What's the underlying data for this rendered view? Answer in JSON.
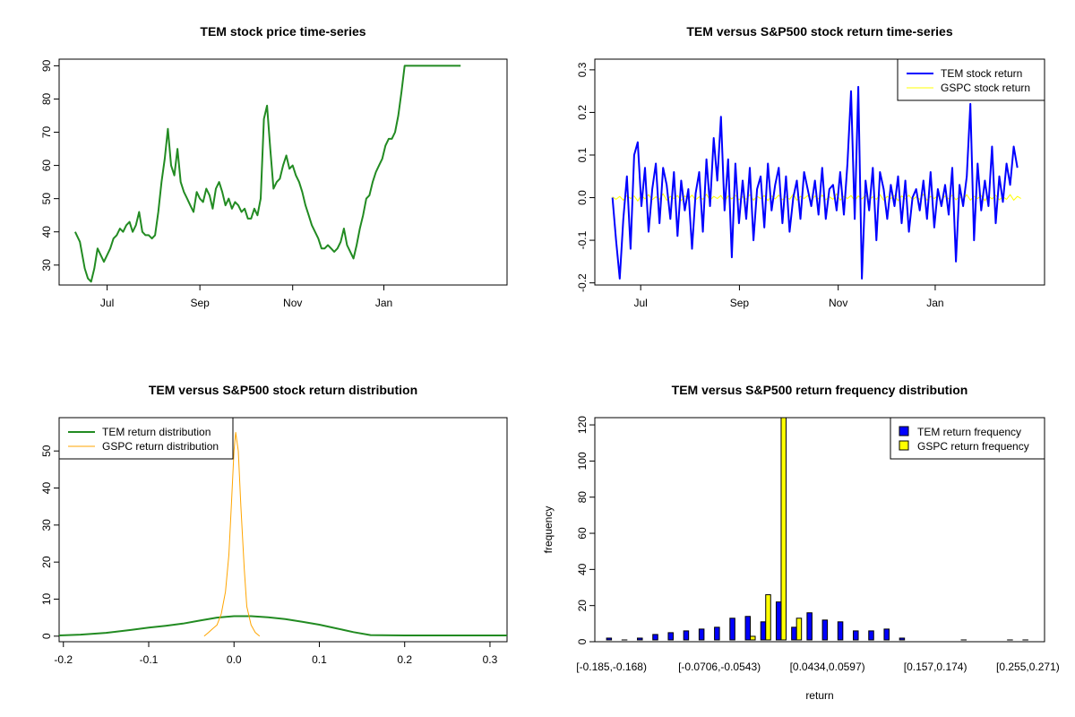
{
  "colors": {
    "price": "#228B22",
    "tem": "#0000FF",
    "gspc_line": "#FFFF00",
    "tem_density": "#228B22",
    "gspc_density": "#FFA500",
    "tem_hist": "#0000FF",
    "gspc_hist": "#FFFF00"
  },
  "chart_data": [
    {
      "id": "price",
      "type": "line",
      "title": "TEM stock price time-series",
      "xlabel": "",
      "ylabel": "",
      "xlim": [
        -10,
        270
      ],
      "ylim": [
        24,
        92
      ],
      "x_ticks": [
        {
          "label": "Jul",
          "x": 20
        },
        {
          "label": "Sep",
          "x": 78
        },
        {
          "label": "Nov",
          "x": 136
        },
        {
          "label": "Jan",
          "x": 193
        }
      ],
      "y_ticks": [
        30,
        40,
        50,
        60,
        70,
        80,
        90
      ],
      "series": [
        {
          "color_key": "price",
          "x": [
            0,
            3,
            6,
            8,
            10,
            12,
            14,
            16,
            18,
            20,
            22,
            24,
            26,
            28,
            30,
            32,
            34,
            36,
            38,
            40,
            42,
            44,
            46,
            48,
            50,
            52,
            54,
            56,
            58,
            60,
            62,
            64,
            66,
            68,
            70,
            72,
            74,
            76,
            78,
            80,
            82,
            84,
            86,
            88,
            90,
            92,
            94,
            96,
            98,
            100,
            102,
            104,
            106,
            108,
            110,
            112,
            114,
            116,
            118,
            120,
            122,
            124,
            126,
            128,
            130,
            132,
            134,
            136,
            138,
            140,
            142,
            144,
            146,
            148,
            150,
            152,
            154,
            156,
            158,
            160,
            162,
            164,
            166,
            168,
            170,
            172,
            174,
            176,
            178,
            180,
            182,
            184,
            186,
            188,
            190,
            192,
            194,
            196,
            198,
            200,
            202,
            204,
            206,
            208,
            210,
            212,
            214,
            216,
            218,
            220,
            222,
            224,
            226,
            228,
            230,
            232,
            234,
            236,
            238,
            240,
            241
          ],
          "y": [
            40,
            37,
            29,
            26,
            25,
            29,
            35,
            33,
            31,
            33,
            35,
            38,
            39,
            41,
            40,
            42,
            43,
            40,
            42,
            46,
            40,
            39,
            39,
            38,
            39,
            46,
            55,
            62,
            71,
            60,
            57,
            65,
            55,
            52,
            50,
            48,
            46,
            52,
            50,
            49,
            53,
            51,
            47,
            53,
            55,
            52,
            48,
            50,
            47,
            49,
            48,
            46,
            47,
            44,
            44,
            47,
            45,
            50,
            74,
            78,
            65,
            53,
            55,
            56,
            60,
            63,
            59,
            60,
            57,
            55,
            52,
            48,
            45,
            42,
            40,
            38,
            35,
            35,
            36,
            35,
            34,
            35,
            37,
            41,
            36,
            34,
            32,
            36,
            41,
            45,
            50,
            51,
            55,
            58,
            60,
            62,
            66,
            68,
            68,
            70,
            75,
            82,
            90,
            90,
            90,
            90,
            90,
            90,
            90,
            90,
            90,
            90,
            90,
            90,
            90,
            90,
            90,
            90,
            90,
            90,
            90
          ]
        }
      ]
    },
    {
      "id": "returns",
      "type": "line",
      "title": "TEM versus S&P500 stock return time-series",
      "xlabel": "",
      "ylabel": "",
      "xlim": [
        -10,
        245
      ],
      "ylim": [
        -0.205,
        0.325
      ],
      "x_ticks": [
        {
          "label": "Jul",
          "x": 16
        },
        {
          "label": "Sep",
          "x": 72
        },
        {
          "label": "Nov",
          "x": 128
        },
        {
          "label": "Jan",
          "x": 183
        }
      ],
      "y_ticks": [
        -0.2,
        -0.1,
        0.0,
        0.1,
        0.2,
        0.3
      ],
      "y_tick_labels": [
        "-0.2",
        "-0.1",
        "0.0",
        "0.1",
        "0.2",
        "0.3"
      ],
      "legend": {
        "position": "top-right",
        "entries": [
          {
            "label": "TEM stock return",
            "color_key": "tem"
          },
          {
            "label": "GSPC stock return",
            "color_key": "gspc_line"
          }
        ]
      },
      "series": [
        {
          "name": "TEM stock return",
          "color_key": "tem",
          "values": [
            0.0,
            -0.1,
            -0.19,
            -0.05,
            0.05,
            -0.12,
            0.1,
            0.13,
            -0.02,
            0.07,
            -0.08,
            0.02,
            0.08,
            -0.06,
            0.07,
            0.03,
            -0.05,
            0.06,
            -0.09,
            0.04,
            -0.03,
            0.02,
            -0.12,
            0.01,
            0.06,
            -0.08,
            0.09,
            -0.02,
            0.14,
            0.04,
            0.19,
            -0.03,
            0.09,
            -0.14,
            0.08,
            -0.06,
            0.04,
            -0.05,
            0.07,
            -0.1,
            0.02,
            0.05,
            -0.07,
            0.08,
            -0.03,
            0.03,
            0.07,
            -0.06,
            0.05,
            -0.08,
            0.0,
            0.04,
            -0.05,
            0.06,
            0.02,
            -0.02,
            0.04,
            -0.04,
            0.07,
            -0.05,
            0.02,
            0.03,
            -0.03,
            0.06,
            -0.04,
            0.08,
            0.25,
            -0.05,
            0.26,
            -0.19,
            0.04,
            -0.03,
            0.07,
            -0.1,
            0.06,
            0.02,
            -0.05,
            0.03,
            -0.02,
            0.05,
            -0.06,
            0.04,
            -0.08,
            0.0,
            0.02,
            -0.03,
            0.04,
            -0.05,
            0.06,
            -0.07,
            0.02,
            -0.02,
            0.03,
            -0.04,
            0.07,
            -0.15,
            0.03,
            -0.02,
            0.05,
            0.22,
            -0.1,
            0.08,
            -0.03,
            0.04,
            -0.02,
            0.12,
            -0.06,
            0.05,
            -0.01,
            0.08,
            0.03,
            0.12,
            0.07
          ],
          "x_step": 2.05
        },
        {
          "name": "GSPC stock return",
          "color_key": "gspc_line",
          "values": [
            0.002,
            -0.004,
            0.003,
            -0.006,
            0.005,
            -0.002,
            0.004,
            -0.008,
            0.006,
            -0.003,
            0.007,
            -0.005,
            0.002,
            -0.004,
            0.009,
            -0.006,
            0.003,
            -0.002,
            0.005,
            -0.007,
            0.004,
            -0.003,
            0.006,
            -0.005,
            0.002,
            -0.004,
            0.008,
            -0.006,
            0.003,
            -0.002,
            0.005,
            -0.009,
            0.004,
            -0.003,
            0.006,
            -0.005,
            0.002,
            -0.004,
            0.007,
            -0.006,
            0.003,
            -0.002,
            0.005,
            -0.007,
            0.004,
            -0.003,
            0.006,
            -0.005,
            0.002,
            -0.004,
            0.008,
            -0.006,
            0.003,
            -0.002,
            0.005,
            -0.007,
            0.004,
            -0.003,
            0.006,
            -0.005,
            0.002,
            -0.004,
            0.009,
            -0.006,
            0.003,
            -0.002,
            0.005,
            -0.007,
            0.004,
            -0.003,
            0.006,
            -0.005,
            0.002,
            -0.004,
            0.007,
            -0.006,
            0.003,
            -0.002,
            0.005,
            -0.007,
            0.004,
            -0.003,
            0.006,
            -0.005,
            0.002,
            -0.004,
            0.008,
            -0.006,
            0.003,
            -0.002,
            0.005,
            -0.007,
            0.004,
            -0.003,
            0.006,
            -0.005,
            0.002,
            -0.004,
            0.007,
            -0.006,
            0.003,
            -0.002,
            0.005,
            -0.007,
            0.004,
            -0.003,
            0.006,
            -0.005,
            0.002,
            -0.004,
            0.007,
            -0.006,
            0.003,
            -0.002
          ],
          "x_step": 2.05
        }
      ]
    },
    {
      "id": "density",
      "type": "line",
      "title": "TEM versus S&P500 stock return distribution",
      "xlabel": "",
      "ylabel": "",
      "xlim": [
        -0.205,
        0.32
      ],
      "ylim": [
        -1.5,
        59
      ],
      "x_ticks": [
        -0.2,
        -0.1,
        0.0,
        0.1,
        0.2,
        0.3
      ],
      "x_tick_labels": [
        "-0.2",
        "-0.1",
        "0.0",
        "0.1",
        "0.2",
        "0.3"
      ],
      "y_ticks": [
        0,
        10,
        20,
        30,
        40,
        50
      ],
      "legend": {
        "position": "top-left",
        "entries": [
          {
            "label": "TEM return distribution",
            "color_key": "tem_density"
          },
          {
            "label": "GSPC return distribution",
            "color_key": "gspc_density"
          }
        ]
      },
      "series": [
        {
          "name": "TEM return distribution",
          "color_key": "tem_density",
          "x": [
            -0.205,
            -0.18,
            -0.15,
            -0.12,
            -0.1,
            -0.08,
            -0.06,
            -0.04,
            -0.02,
            0.0,
            0.02,
            0.04,
            0.06,
            0.08,
            0.1,
            0.12,
            0.14,
            0.16,
            0.2,
            0.25,
            0.32
          ],
          "y": [
            0.2,
            0.4,
            0.9,
            1.7,
            2.3,
            2.8,
            3.4,
            4.2,
            5.0,
            5.4,
            5.4,
            5.1,
            4.6,
            3.9,
            3.1,
            2.1,
            1.1,
            0.3,
            0.2,
            0.2,
            0.2
          ]
        },
        {
          "name": "GSPC return distribution",
          "color_key": "gspc_density",
          "x": [
            -0.035,
            -0.03,
            -0.025,
            -0.02,
            -0.015,
            -0.01,
            -0.006,
            -0.003,
            0.0,
            0.002,
            0.005,
            0.008,
            0.012,
            0.015,
            0.02,
            0.025,
            0.03
          ],
          "y": [
            0,
            1,
            2,
            3,
            6,
            12,
            22,
            36,
            50,
            55,
            50,
            35,
            18,
            8,
            3,
            1,
            0
          ]
        }
      ]
    },
    {
      "id": "freq",
      "type": "bar",
      "title": "TEM versus S&P500 return frequency distribution",
      "xlabel": "return",
      "ylabel": "frequency",
      "ylim": [
        0,
        124
      ],
      "y_ticks": [
        0,
        20,
        40,
        60,
        80,
        100,
        120
      ],
      "x_tick_labels": [
        {
          "label": "[-0.185,-0.168)",
          "index": 0
        },
        {
          "label": "[-0.0706,-0.0543)",
          "index": 7
        },
        {
          "label": "[0.0434,0.0597)",
          "index": 14
        },
        {
          "label": "[0.157,0.174)",
          "index": 21
        },
        {
          "label": "[0.255,0.271)",
          "index": 27
        }
      ],
      "legend": {
        "position": "top-right",
        "entries": [
          {
            "label": "TEM return frequency",
            "color_key": "tem_hist"
          },
          {
            "label": "GSPC return frequency",
            "color_key": "gspc_hist"
          }
        ]
      },
      "n_bins": 28,
      "series": [
        {
          "name": "TEM return frequency",
          "color_key": "tem_hist",
          "values": [
            2,
            1,
            2,
            4,
            5,
            6,
            7,
            8,
            13,
            14,
            11,
            22,
            8,
            16,
            12,
            11,
            6,
            6,
            7,
            2,
            0,
            0,
            0,
            1,
            0,
            0,
            1,
            1
          ]
        },
        {
          "name": "GSPC return frequency",
          "color_key": "gspc_hist",
          "values": [
            0,
            0,
            0,
            0,
            0,
            0,
            0,
            0,
            0,
            3,
            26,
            124,
            13,
            0,
            0,
            0,
            0,
            0,
            0,
            0,
            0,
            0,
            0,
            0,
            0,
            0,
            0,
            0
          ]
        }
      ]
    }
  ]
}
